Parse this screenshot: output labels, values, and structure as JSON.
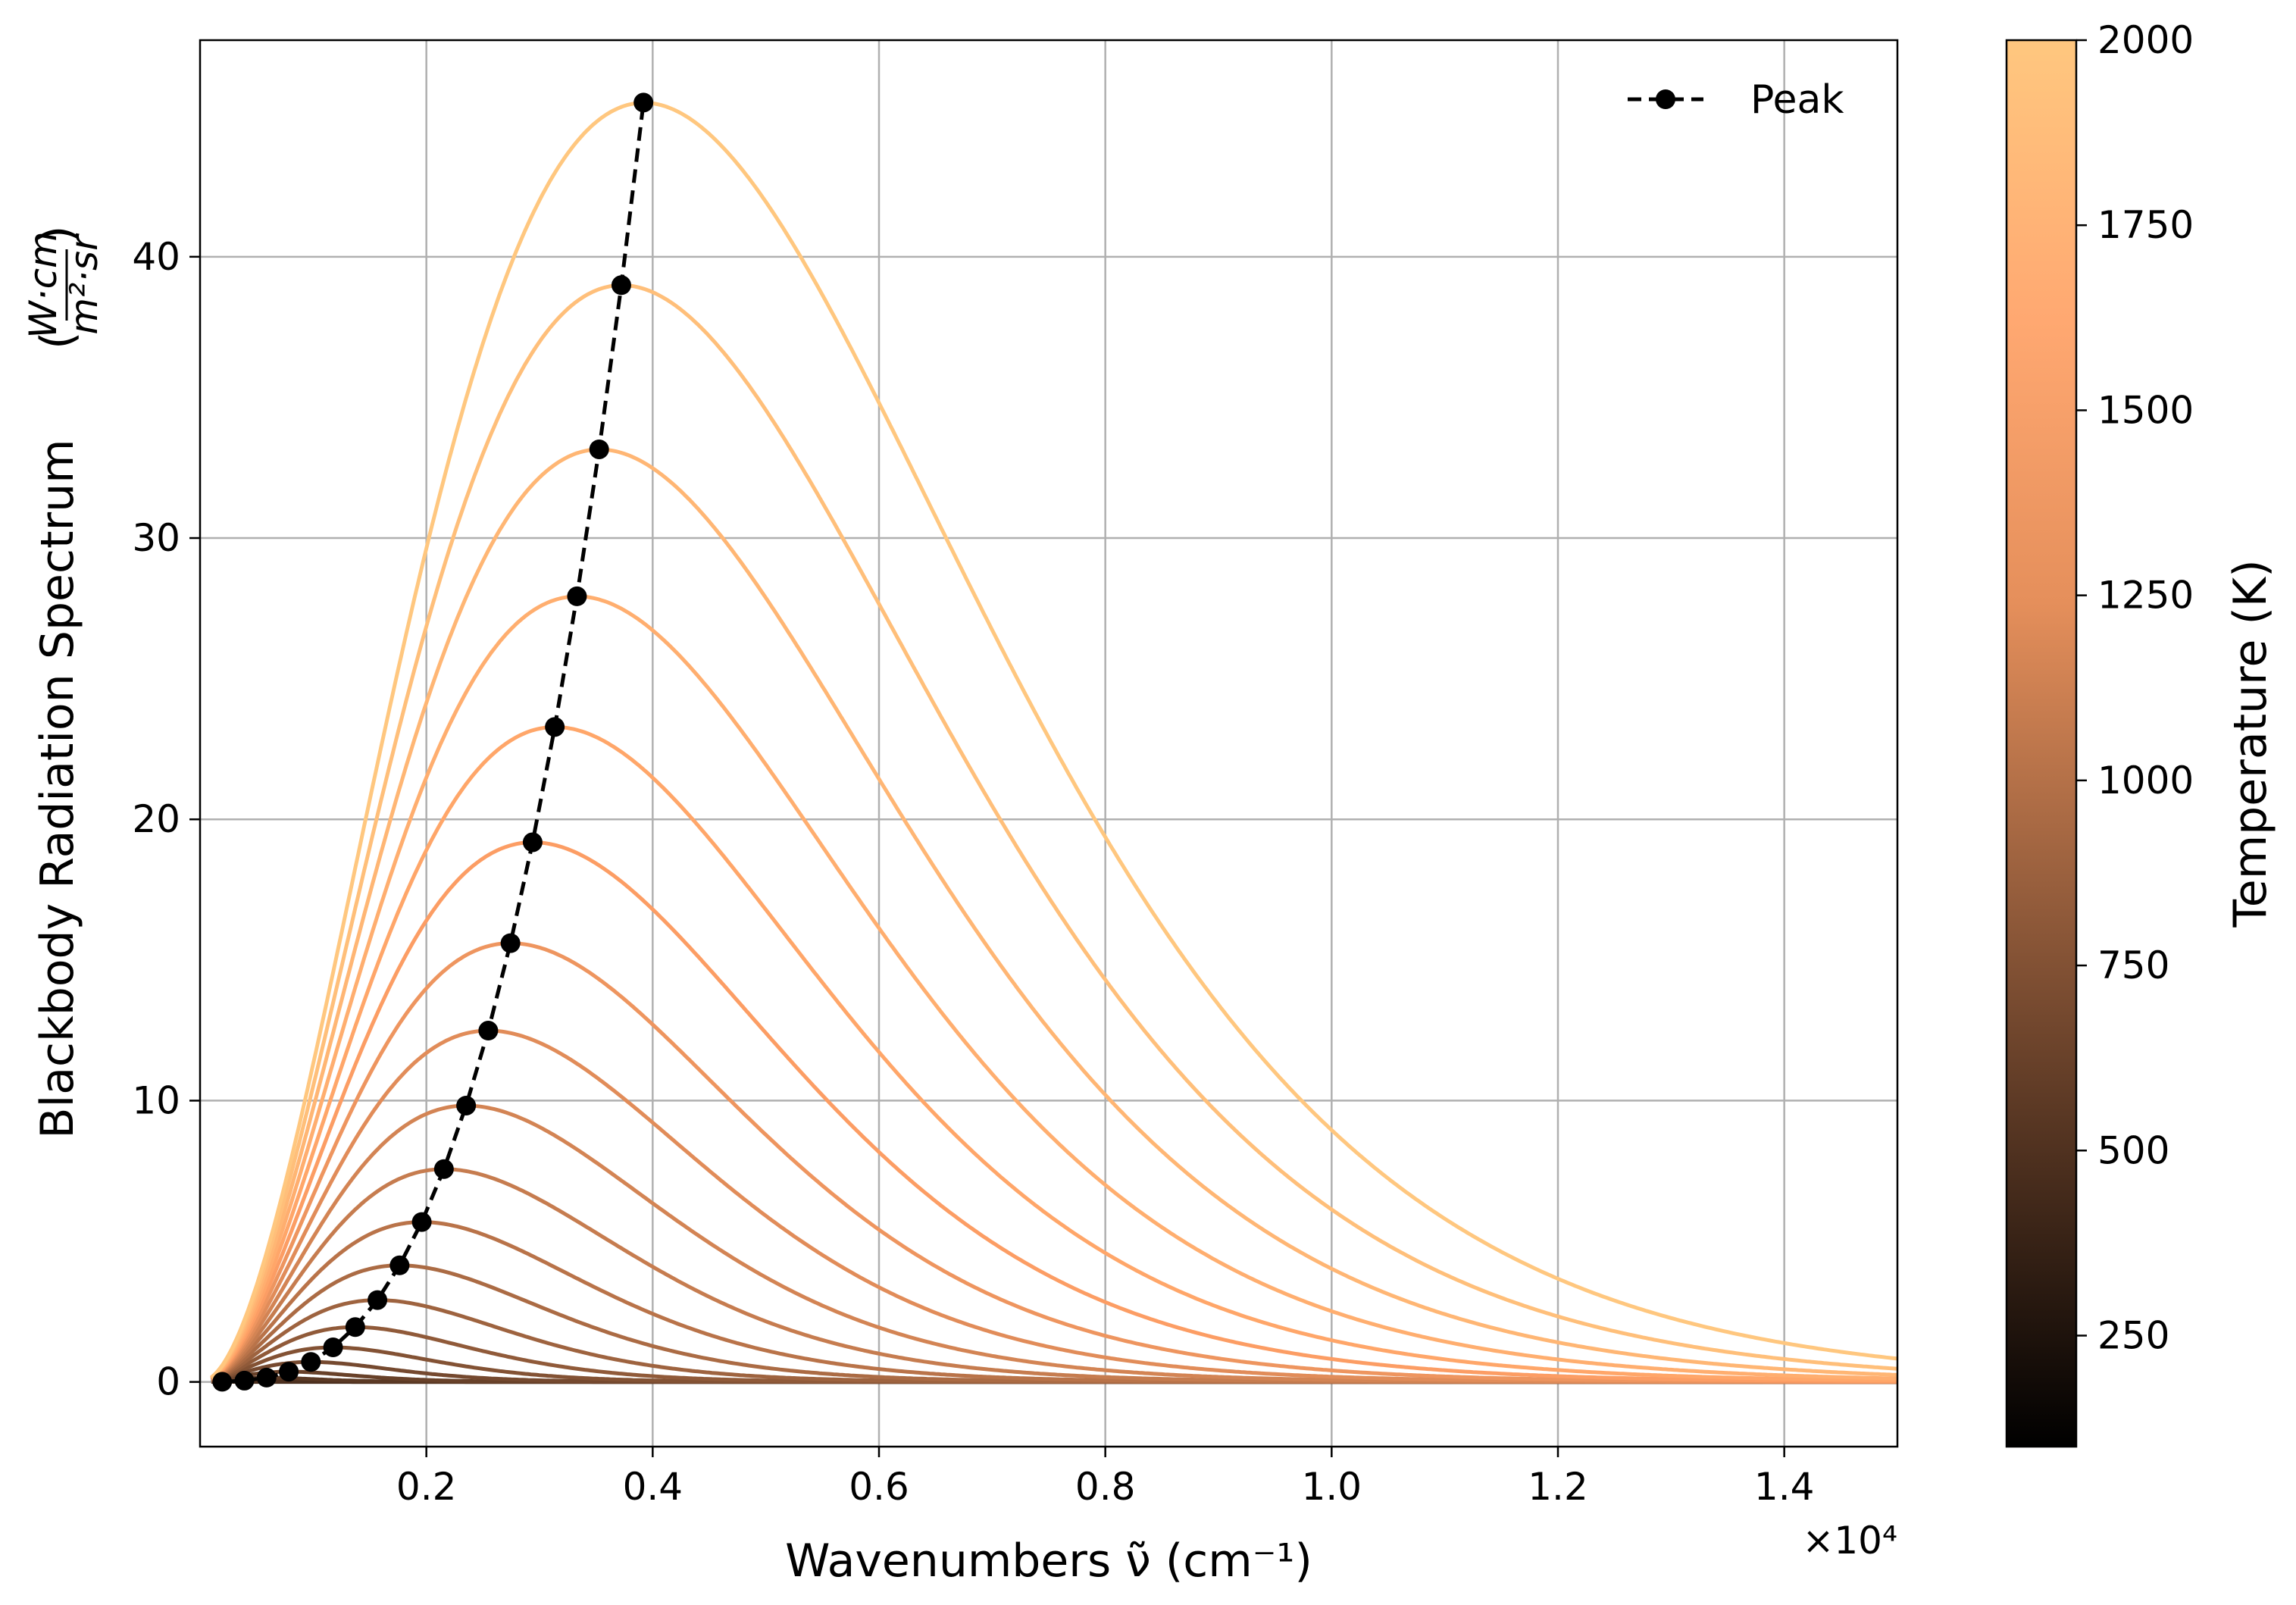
{
  "chart_data": {
    "type": "line",
    "title": "",
    "xlabel": "Wavenumbers ν̃ (cm⁻¹)",
    "ylabel": "Blackbody Radiation Spectrum",
    "ylabel_units": {
      "numerator": "W·cm",
      "denominator": "m²·sr"
    },
    "x_scale_label": "×10⁴",
    "x_scale": 10000,
    "xlim": [
      0.0,
      15000
    ],
    "ylim": [
      -2.3,
      47.7
    ],
    "x_ticks": [
      2000,
      4000,
      6000,
      8000,
      10000,
      12000,
      14000
    ],
    "x_tick_labels": [
      "0.2",
      "0.4",
      "0.6",
      "0.8",
      "1.0",
      "1.2",
      "1.4"
    ],
    "y_ticks": [
      0,
      10,
      20,
      30,
      40
    ],
    "y_tick_labels": [
      "0",
      "10",
      "20",
      "30",
      "40"
    ],
    "grid": true,
    "legend": {
      "placement": "top-right",
      "entries": [
        "Peak"
      ]
    },
    "peak_series_color": "#000000",
    "colormap": "copper",
    "series_temperatures_K": [
      100,
      200,
      300,
      400,
      500,
      600,
      700,
      800,
      900,
      1000,
      1100,
      1200,
      1300,
      1400,
      1500,
      1600,
      1700,
      1800,
      1900,
      2000
    ],
    "peak": {
      "name": "Peak",
      "x": [
        195.9,
        391.9,
        587.8,
        783.8,
        979.7,
        1175.6,
        1371.6,
        1567.5,
        1763.5,
        1959.4,
        2155.3,
        2351.3,
        2547.2,
        2743.2,
        2939.1,
        3135.0,
        3331.0,
        3526.9,
        3722.9,
        3918.8
      ],
      "y": [
        0.0057,
        0.0455,
        0.1535,
        0.3638,
        0.7106,
        1.2279,
        1.9498,
        2.9105,
        4.144,
        5.685,
        7.567,
        9.823,
        12.489,
        15.598,
        19.186,
        23.284,
        27.929,
        33.153,
        38.991,
        45.48
      ]
    },
    "colorbar": {
      "label": "Temperature (K)",
      "range": [
        100,
        2000
      ],
      "ticks": [
        250,
        500,
        750,
        1000,
        1250,
        1500,
        1750,
        2000
      ],
      "tick_labels": [
        "250",
        "500",
        "750",
        "1000",
        "1250",
        "1500",
        "1750",
        "2000"
      ]
    }
  }
}
